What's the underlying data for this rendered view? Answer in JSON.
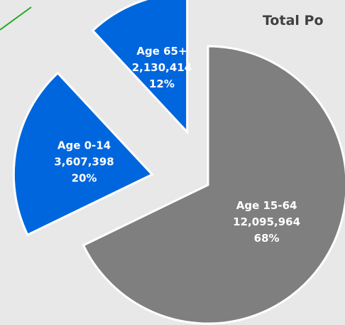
{
  "chart_data": {
    "type": "pie",
    "title": "Total Po",
    "categories": [
      "Age 15-64",
      "Age 0-14",
      "Age 65+"
    ],
    "values": [
      12095964,
      3607398,
      2130414
    ],
    "value_labels": [
      "12,095,964",
      "3,607,398",
      "2,130,414"
    ],
    "percents": [
      68,
      20,
      12
    ],
    "percent_labels": [
      "68%",
      "20%",
      "12%"
    ],
    "colors": [
      "#7f7f7f",
      "#0066dd",
      "#0066dd"
    ],
    "exploded": [
      false,
      true,
      true
    ]
  }
}
